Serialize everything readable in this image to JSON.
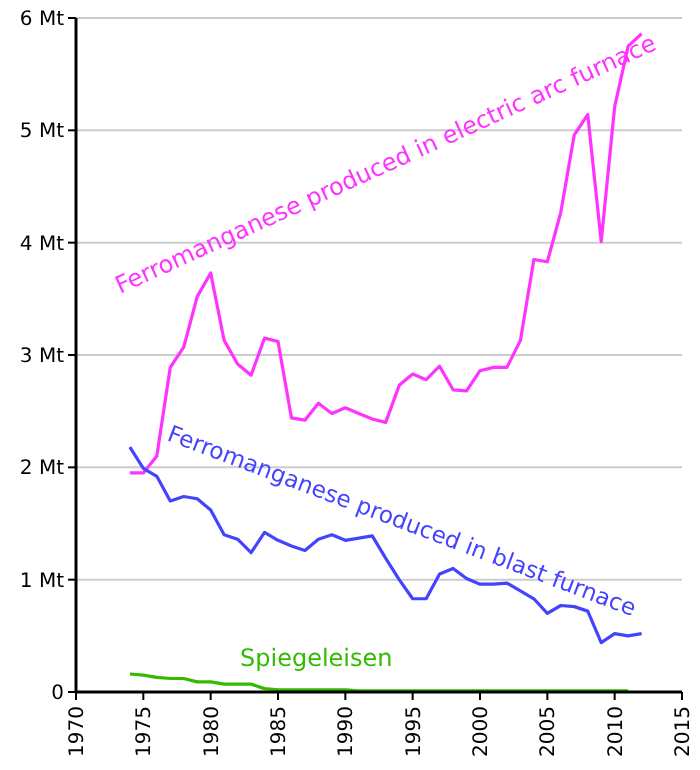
{
  "chart_data": {
    "type": "line",
    "xlim": [
      1970,
      2015
    ],
    "xticks": [
      1970,
      1975,
      1980,
      1985,
      1990,
      1995,
      2000,
      2005,
      2010,
      2015
    ],
    "ylim": [
      0,
      6
    ],
    "yticks": [
      {
        "value": 0,
        "label": "0"
      },
      {
        "value": 1,
        "label": "1 Mt"
      },
      {
        "value": 2,
        "label": "2 Mt"
      },
      {
        "value": 3,
        "label": "3 Mt"
      },
      {
        "value": 4,
        "label": "4 Mt"
      },
      {
        "value": 5,
        "label": "5 Mt"
      },
      {
        "value": 6,
        "label": "6 Mt"
      }
    ],
    "grid": "y",
    "legend": false,
    "marker": "none",
    "line_style": "solid",
    "x": [
      1974,
      1975,
      1976,
      1977,
      1978,
      1979,
      1980,
      1981,
      1982,
      1983,
      1984,
      1985,
      1986,
      1987,
      1988,
      1989,
      1990,
      1991,
      1992,
      1993,
      1994,
      1995,
      1996,
      1997,
      1998,
      1999,
      2000,
      2001,
      2002,
      2003,
      2004,
      2005,
      2006,
      2007,
      2008,
      2009,
      2010,
      2011,
      2012
    ],
    "series": [
      {
        "name": "Ferromanganese produced in electric arc furnace",
        "color": "#ff33ff",
        "values": [
          1.95,
          1.95,
          2.1,
          2.89,
          3.07,
          3.52,
          3.73,
          3.13,
          2.92,
          2.82,
          3.15,
          3.12,
          2.44,
          2.42,
          2.57,
          2.48,
          2.53,
          2.48,
          2.43,
          2.4,
          2.73,
          2.83,
          2.78,
          2.9,
          2.69,
          2.68,
          2.86,
          2.89,
          2.89,
          3.13,
          3.85,
          3.83,
          4.27,
          4.96,
          5.14,
          4.01,
          5.21,
          5.75,
          5.86
        ]
      },
      {
        "name": "Ferromanganese produced in blast furnace",
        "color": "#4444ff",
        "values": [
          2.18,
          1.99,
          1.92,
          1.7,
          1.74,
          1.72,
          1.62,
          1.4,
          1.36,
          1.24,
          1.42,
          1.35,
          1.3,
          1.26,
          1.36,
          1.4,
          1.35,
          1.37,
          1.39,
          1.19,
          1.0,
          0.83,
          0.83,
          1.05,
          1.1,
          1.01,
          0.96,
          0.96,
          0.97,
          0.9,
          0.83,
          0.7,
          0.77,
          0.76,
          0.72,
          0.44,
          0.52,
          0.5,
          0.52
        ]
      },
      {
        "name": "Spiegeleisen",
        "color": "#33bb00",
        "values": [
          0.16,
          0.15,
          0.13,
          0.12,
          0.12,
          0.09,
          0.09,
          0.07,
          0.07,
          0.07,
          0.03,
          0.02,
          0.02,
          0.02,
          0.02,
          0.02,
          0.02,
          0.01,
          0.01,
          0.01,
          0.01,
          0.01,
          0.01,
          0.01,
          0.01,
          0.01,
          0.01,
          0.01,
          0.01,
          0.01,
          0.01,
          0.01,
          0.01,
          0.01,
          0.01,
          0.01,
          0.01,
          0.01,
          null
        ]
      }
    ]
  }
}
